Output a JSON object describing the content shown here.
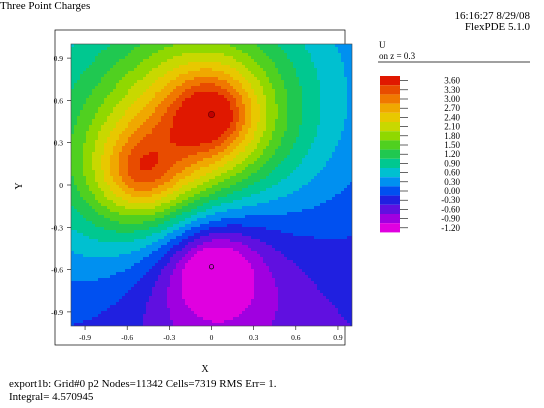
{
  "header": {
    "title": "Three Point Charges",
    "timestamp": "16:16:27 8/29/08",
    "version": "FlexPDE 5.1.0"
  },
  "footer": {
    "line1": "export1b:  Grid#0  p2  Nodes=11342 Cells=7319 RMS Err= 1.",
    "line2": "Integral=  4.570945"
  },
  "chart_data": {
    "type": "heatmap",
    "xlabel": "X",
    "ylabel": "Y",
    "xlim": [
      -1.0,
      1.0
    ],
    "ylim": [
      -1.0,
      1.0
    ],
    "x_ticks": [
      -0.9,
      -0.6,
      -0.3,
      0,
      0.3,
      0.6,
      0.9
    ],
    "x_tick_labels": [
      "-0.9",
      "-0.6",
      "-0.3",
      "0",
      "0.3",
      "0.6",
      "0.9"
    ],
    "y_ticks": [
      0.9,
      0.6,
      0.3,
      0,
      -0.3,
      -0.6,
      -0.9
    ],
    "y_tick_labels": [
      "0.9",
      "0.6",
      "0.3",
      "0",
      "-0.3",
      "-0.6",
      "-0.9"
    ],
    "legend": {
      "title": "U",
      "subtitle": "on z = 0.3",
      "placement": "right",
      "levels": [
        3.6,
        3.3,
        3.0,
        2.7,
        2.4,
        2.1,
        1.8,
        1.5,
        1.2,
        0.9,
        0.6,
        0.3,
        0.0,
        -0.3,
        -0.6,
        -0.9,
        -1.2
      ],
      "labels": [
        "3.60",
        "3.30",
        "3.00",
        "2.70",
        "2.40",
        "2.10",
        "1.80",
        "1.50",
        "1.20",
        "0.90",
        "0.60",
        "0.30",
        "0.00",
        "-0.30",
        "-0.60",
        "-0.90",
        "-1.20"
      ],
      "colors": [
        "#e01800",
        "#e84c00",
        "#f07800",
        "#f0a800",
        "#e8c800",
        "#c8d800",
        "#90d800",
        "#50d020",
        "#20c850",
        "#00c890",
        "#00c0d0",
        "#0090f0",
        "#0050f0",
        "#2020e0",
        "#6010e0",
        "#a000e0",
        "#e000e0"
      ]
    },
    "charges": [
      {
        "x": 0.0,
        "y": 0.5,
        "marker": "maximum"
      },
      {
        "x": -0.5,
        "y": 0.08,
        "marker": "none"
      },
      {
        "x": 0.0,
        "y": -0.58,
        "marker": "minimum"
      }
    ]
  }
}
